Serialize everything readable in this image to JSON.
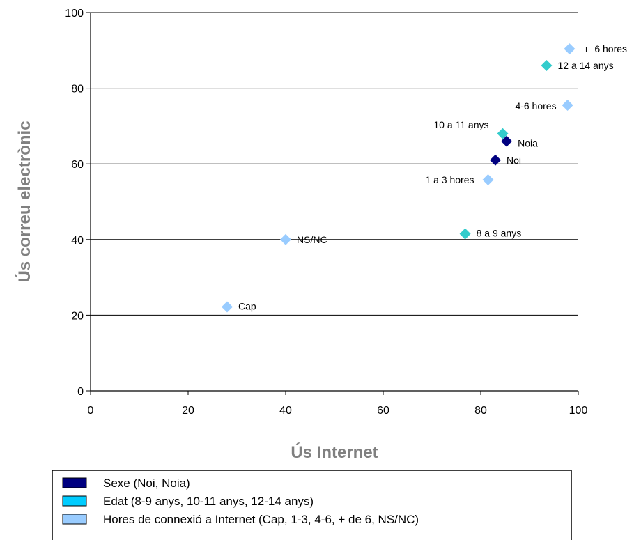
{
  "chart_data": {
    "type": "scatter",
    "xlabel": "Ús Internet",
    "ylabel": "Ús correu electrònic",
    "xlim": [
      0,
      100
    ],
    "ylim": [
      0,
      100
    ],
    "xticks": [
      "0",
      "20",
      "40",
      "60",
      "80",
      "100"
    ],
    "yticks": [
      "0",
      "20",
      "40",
      "60",
      "80",
      "100"
    ],
    "grid": "horizontal",
    "legend_position": "bottom",
    "series": [
      {
        "name": "Sexe (Noi, Noia)",
        "color": "#000080",
        "points": [
          {
            "label": "Noi",
            "x": 83,
            "y": 61
          },
          {
            "label": "Noia",
            "x": 85.3,
            "y": 66
          }
        ]
      },
      {
        "name": "Edat (8-9 anys, 10-11 anys, 12-14 anys)",
        "color": "#33CCCC",
        "legend_color": "#00CCFF",
        "points": [
          {
            "label": "8 a 9 anys",
            "x": 76.8,
            "y": 41.5
          },
          {
            "label": "10 a 11 anys",
            "x": 84.5,
            "y": 68
          },
          {
            "label": "12 a 14 anys",
            "x": 93.5,
            "y": 86
          }
        ]
      },
      {
        "name": "Hores de connexió a Internet (Cap, 1-3, 4-6, + de 6, NS/NC)",
        "color": "#99CCFF",
        "points": [
          {
            "label": "Cap",
            "x": 28,
            "y": 22.2
          },
          {
            "label": "1 a 3 hores",
            "x": 81.5,
            "y": 55.8
          },
          {
            "label": "4-6 hores",
            "x": 97.8,
            "y": 75.5
          },
          {
            "label": "+  6 hores",
            "x": 98.2,
            "y": 90.4
          },
          {
            "label": "NS/NC",
            "x": 40,
            "y": 40
          }
        ]
      }
    ]
  }
}
